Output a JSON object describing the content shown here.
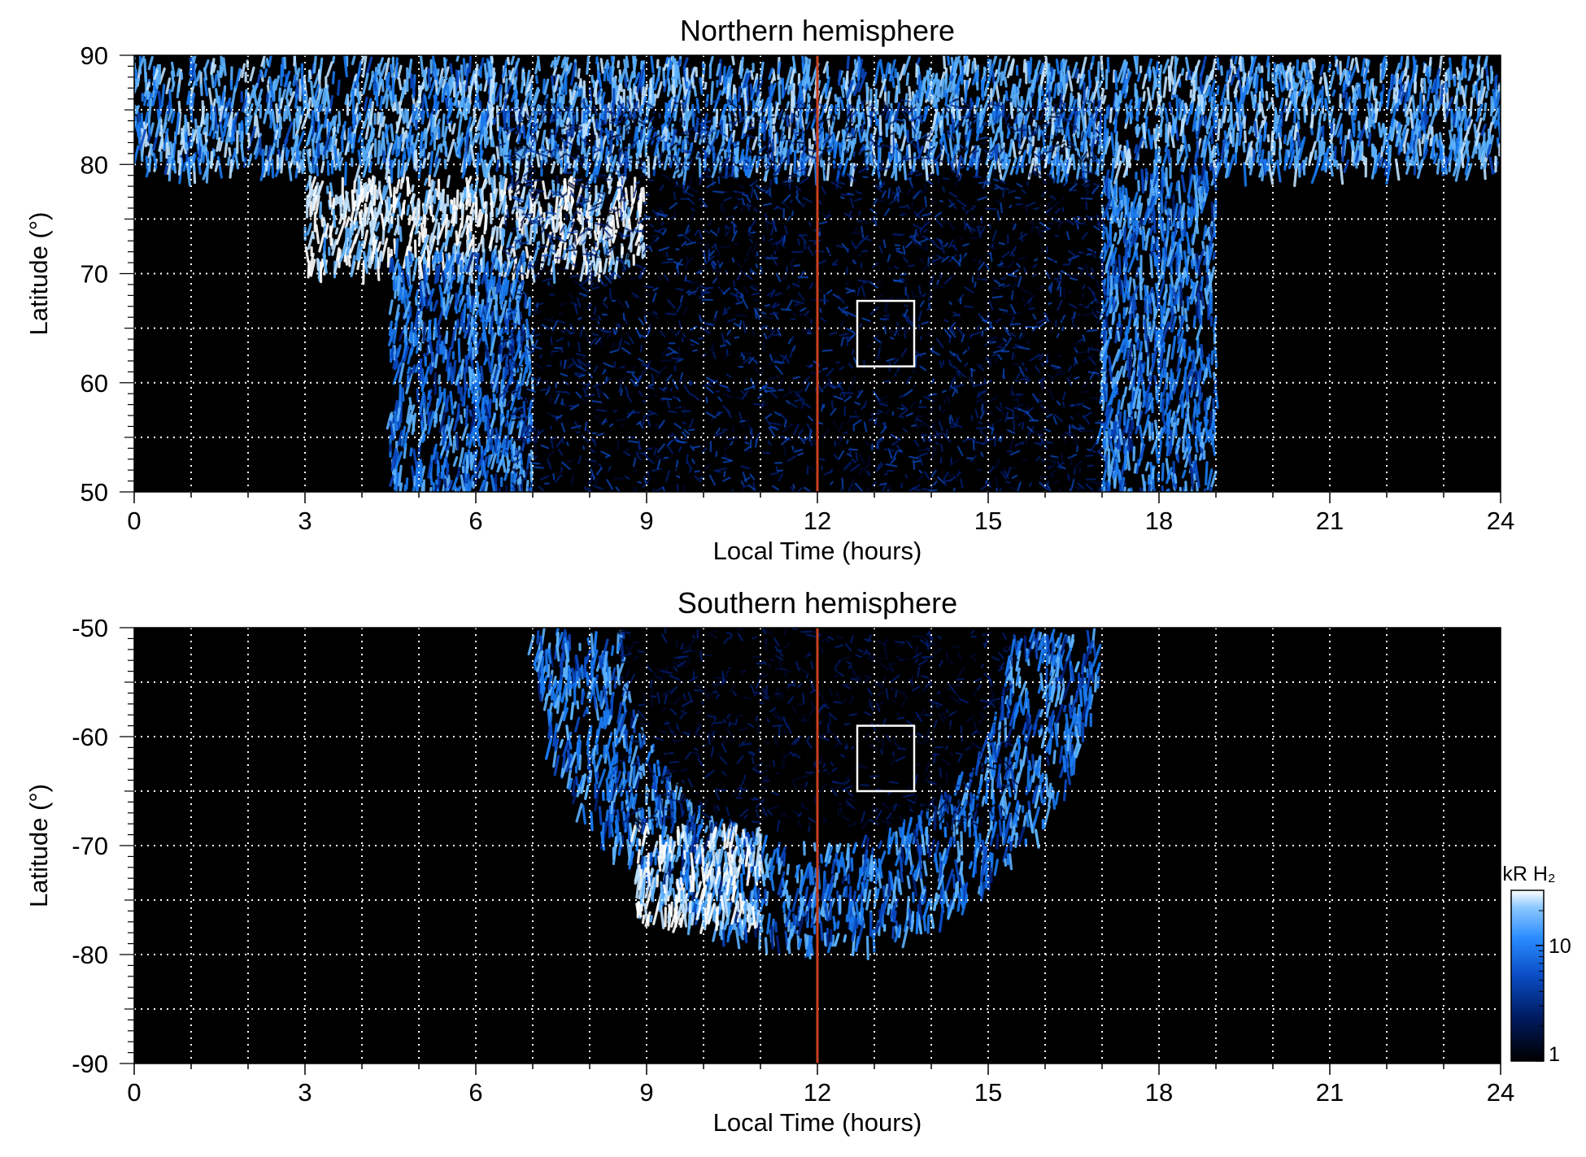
{
  "chart_data": [
    {
      "type": "heatmap",
      "title": "Northern hemisphere",
      "xlabel": "Local Time (hours)",
      "ylabel": "Latitude (°)",
      "xlim": [
        0,
        24
      ],
      "ylim": [
        50,
        90
      ],
      "xticks": [
        0,
        3,
        6,
        9,
        12,
        15,
        18,
        21,
        24
      ],
      "yticks": [
        50,
        60,
        70,
        80,
        90
      ],
      "grid": true,
      "noon_line_x": 12,
      "box": {
        "x": [
          12.7,
          13.7
        ],
        "y": [
          61.5,
          67.5
        ]
      },
      "emission_features": [
        {
          "feature": "polar cap emission",
          "lt": [
            0,
            24
          ],
          "lat": [
            80,
            90
          ],
          "level_kR": 12
        },
        {
          "feature": "bright morning arc",
          "lt": [
            3,
            9
          ],
          "lat": [
            71,
            79
          ],
          "level_kR": 25
        },
        {
          "feature": "dawn auroral oval",
          "lt": [
            4.5,
            7
          ],
          "lat": [
            50,
            72
          ],
          "level_kR": 8
        },
        {
          "feature": "dusk auroral oval",
          "lt": [
            17,
            19
          ],
          "lat": [
            50,
            80
          ],
          "level_kR": 8
        },
        {
          "feature": "dayside diffuse emission",
          "lt": [
            6.5,
            17
          ],
          "lat": [
            50,
            86
          ],
          "level_kR": 3
        }
      ]
    },
    {
      "type": "heatmap",
      "title": "Southern hemisphere",
      "xlabel": "Local Time (hours)",
      "ylabel": "Latitude (°)",
      "xlim": [
        0,
        24
      ],
      "ylim": [
        -90,
        -50
      ],
      "xticks": [
        0,
        3,
        6,
        9,
        12,
        15,
        18,
        21,
        24
      ],
      "yticks": [
        -90,
        -80,
        -70,
        -60,
        -50
      ],
      "grid": true,
      "noon_line_x": 12,
      "box": {
        "x": [
          12.7,
          13.7
        ],
        "y": [
          -65,
          -59
        ]
      },
      "emission_features": [
        {
          "feature": "auroral oval arc",
          "lt": [
            7,
            17
          ],
          "lat": [
            -79,
            -50
          ],
          "level_kR": 8
        },
        {
          "feature": "bright dawn patch",
          "lt": [
            8.8,
            11
          ],
          "lat": [
            -77,
            -68
          ],
          "level_kR": 25
        },
        {
          "feature": "dayside diffuse emission",
          "lt": [
            8.5,
            15.5
          ],
          "lat": [
            -68,
            -50
          ],
          "level_kR": 2
        }
      ],
      "colorbar": {
        "label": "kR H₂",
        "scale": "log",
        "range": [
          1,
          30
        ],
        "ticks": [
          "1",
          "10"
        ]
      }
    }
  ],
  "colors": {
    "background": "#000000",
    "noon_line": "#c8401e",
    "grid": "#ffffff",
    "colormap": [
      "#000000",
      "#000a35",
      "#00207a",
      "#0a48c0",
      "#1a7af0",
      "#5cb2ff",
      "#bfe2ff",
      "#ffffff"
    ]
  }
}
